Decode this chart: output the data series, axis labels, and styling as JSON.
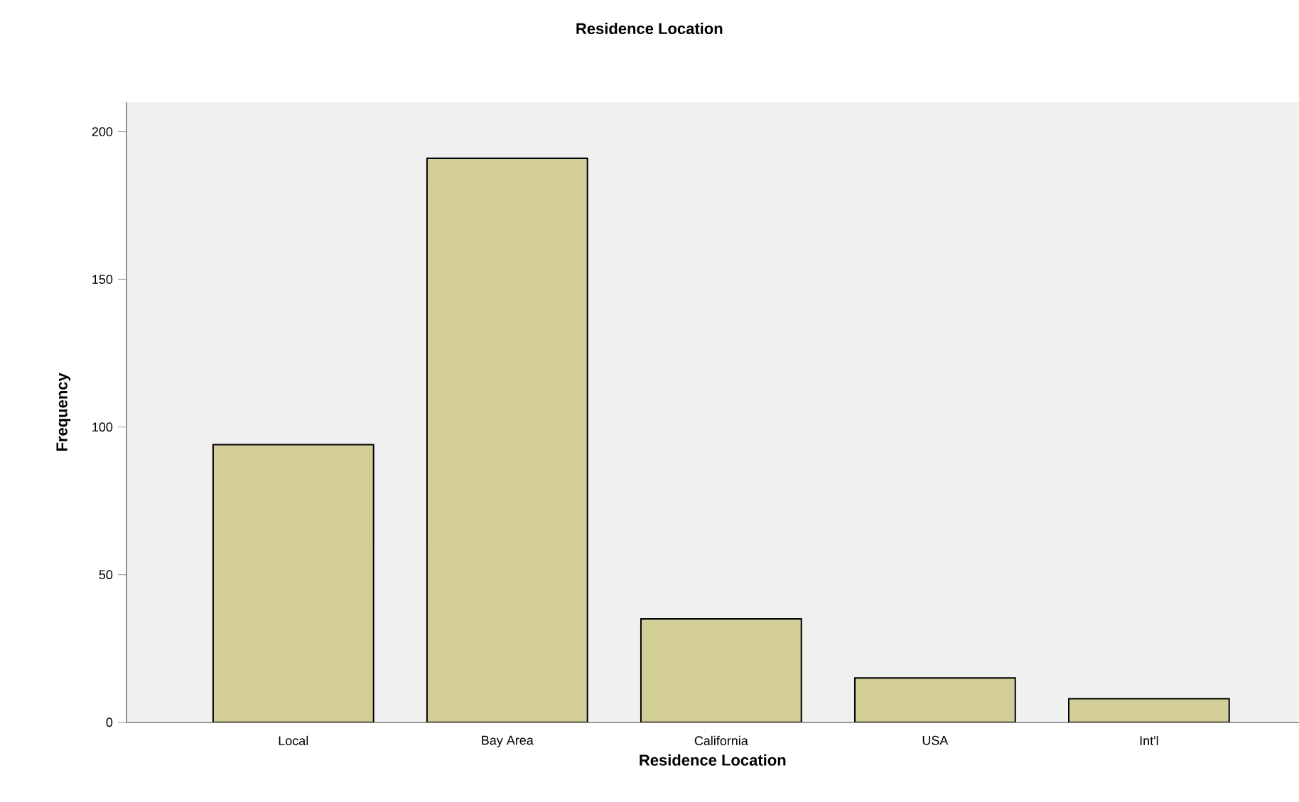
{
  "chart_data": {
    "type": "bar",
    "title": "Residence Location",
    "xlabel": "Residence Location",
    "ylabel": "Frequency",
    "categories": [
      "Local",
      "Bay Area",
      "California",
      "USA",
      "Int'l"
    ],
    "values": [
      94,
      191,
      35,
      15,
      8
    ],
    "color": "#d3ce97",
    "ylim": [
      0,
      210
    ],
    "yticks": [
      0,
      50,
      100,
      150,
      200
    ]
  }
}
